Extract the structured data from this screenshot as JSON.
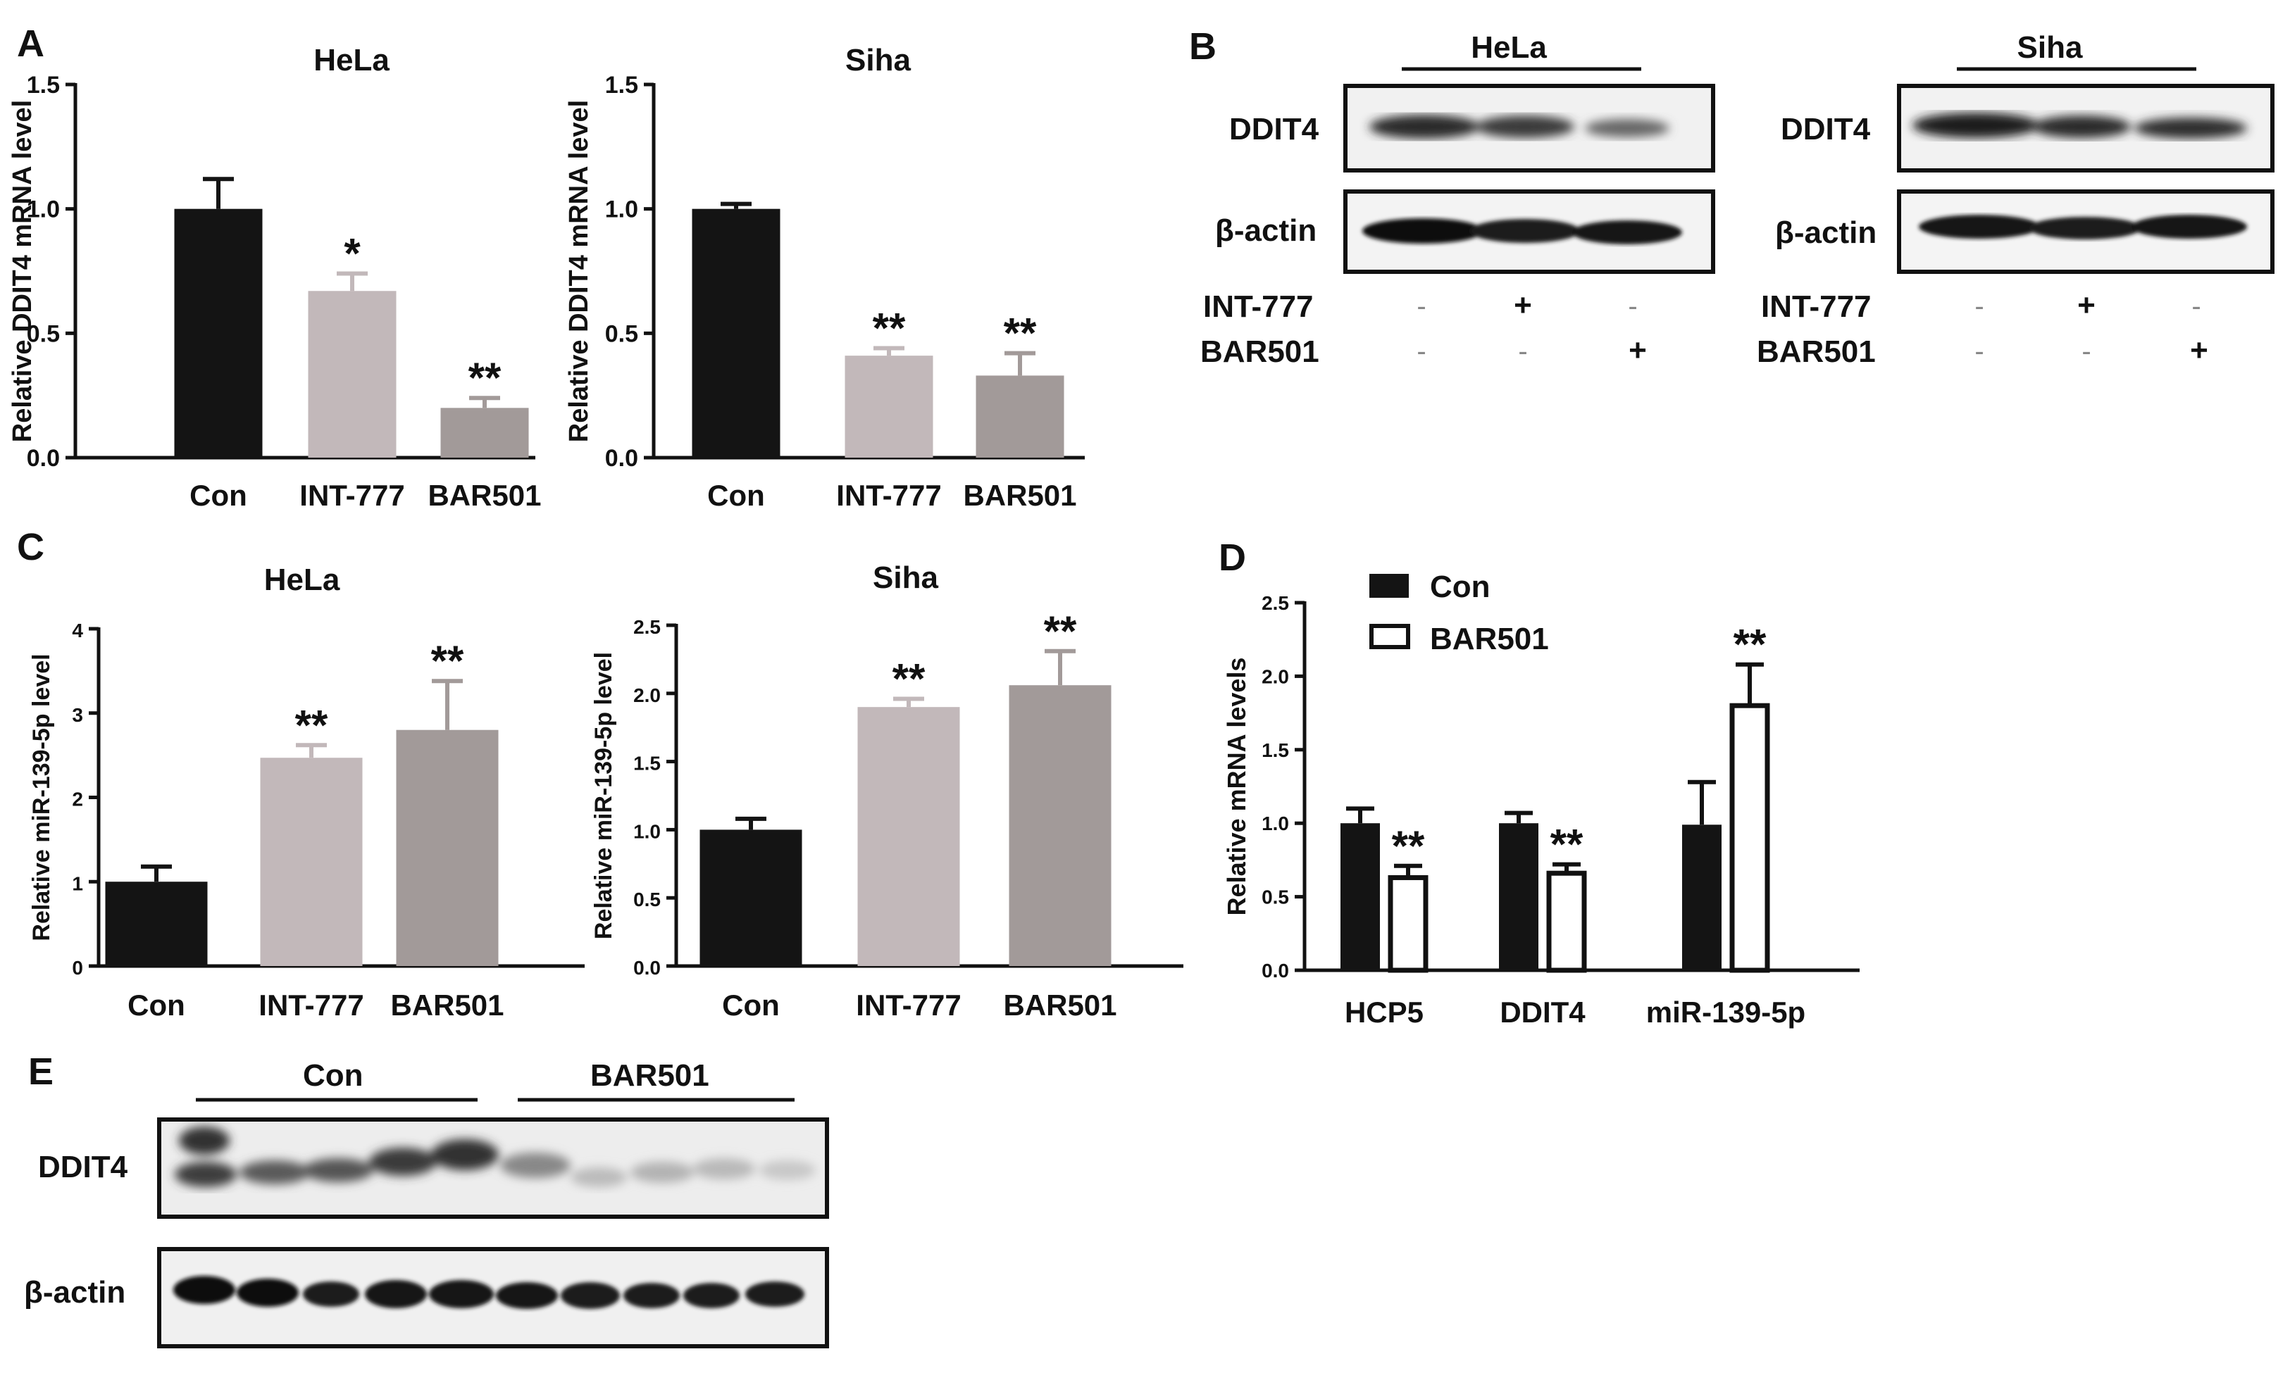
{
  "panels": {
    "A": "A",
    "B": "B",
    "C": "C",
    "D": "D",
    "E": "E"
  },
  "colors": {
    "con": "#141414",
    "int777": "#c2b8ba",
    "bar501": "#a29a99"
  },
  "chart_data": [
    {
      "id": "A1",
      "type": "bar",
      "title": "HeLa",
      "ylabel": "Relative DDIT4 mRNA level",
      "categories": [
        "Con",
        "INT-777",
        "BAR501"
      ],
      "values": [
        1.0,
        0.67,
        0.2
      ],
      "errors": [
        0.12,
        0.07,
        0.04
      ],
      "significance": [
        "",
        "*",
        "**"
      ],
      "ylim": [
        0,
        1.5
      ],
      "yticks": [
        "0.0",
        "0.5",
        "1.0",
        "1.5"
      ]
    },
    {
      "id": "A2",
      "type": "bar",
      "title": "Siha",
      "ylabel": "Relative DDIT4 mRNA level",
      "categories": [
        "Con",
        "INT-777",
        "BAR501"
      ],
      "values": [
        1.0,
        0.41,
        0.33
      ],
      "errors": [
        0.02,
        0.03,
        0.09
      ],
      "significance": [
        "",
        "**",
        "**"
      ],
      "ylim": [
        0,
        1.5
      ],
      "yticks": [
        "0.0",
        "0.5",
        "1.0",
        "1.5"
      ]
    },
    {
      "id": "C1",
      "type": "bar",
      "title": "HeLa",
      "ylabel": "Relative  miR-139-5p level",
      "categories": [
        "Con",
        "INT-777",
        "BAR501"
      ],
      "values": [
        1.0,
        2.47,
        2.8
      ],
      "errors": [
        0.18,
        0.15,
        0.58
      ],
      "significance": [
        "",
        "**",
        "**"
      ],
      "ylim": [
        0,
        4
      ],
      "yticks": [
        "0",
        "1",
        "2",
        "3",
        "4"
      ]
    },
    {
      "id": "C2",
      "type": "bar",
      "title": "Siha",
      "ylabel": "Relative miR-139-5p level",
      "categories": [
        "Con",
        "INT-777",
        "BAR501"
      ],
      "values": [
        1.0,
        1.9,
        2.06
      ],
      "errors": [
        0.08,
        0.06,
        0.25
      ],
      "significance": [
        "",
        "**",
        "**"
      ],
      "ylim": [
        0,
        2.5
      ],
      "yticks": [
        "0.0",
        "0.5",
        "1.0",
        "1.5",
        "2.0",
        "2.5"
      ]
    },
    {
      "id": "D",
      "type": "bar",
      "ylabel": "Relative mRNA levels",
      "categories": [
        "HCP5",
        "DDIT4",
        "miR-139-5p"
      ],
      "series": [
        {
          "name": "Con",
          "values": [
            1.0,
            1.0,
            0.99
          ],
          "errors": [
            0.1,
            0.07,
            0.29
          ]
        },
        {
          "name": "BAR501",
          "values": [
            0.63,
            0.66,
            1.8
          ],
          "errors": [
            0.08,
            0.06,
            0.28
          ]
        }
      ],
      "significance": [
        "**",
        "**",
        "**"
      ],
      "ylim": [
        0,
        2.5
      ],
      "yticks": [
        "0.0",
        "0.5",
        "1.0",
        "1.5",
        "2.0",
        "2.5"
      ],
      "legend_position": "top-left"
    }
  ],
  "blot_B_hela": {
    "cell": "HeLa",
    "labels": [
      "DDIT4",
      "β-actin"
    ],
    "rows": [
      {
        "name": "INT-777",
        "signs": [
          "-",
          "+",
          "-"
        ]
      },
      {
        "name": "BAR501",
        "signs": [
          "-",
          "-",
          "+"
        ]
      }
    ]
  },
  "blot_B_siha": {
    "cell": "Siha",
    "labels": [
      "DDIT4",
      "β-actin"
    ],
    "rows": [
      {
        "name": "INT-777",
        "signs": [
          "-",
          "+",
          "-"
        ]
      },
      {
        "name": "BAR501",
        "signs": [
          "-",
          "-",
          "+"
        ]
      }
    ]
  },
  "blot_E": {
    "groups": [
      "Con",
      "BAR501"
    ],
    "labels": [
      "DDIT4",
      "β-actin"
    ]
  }
}
